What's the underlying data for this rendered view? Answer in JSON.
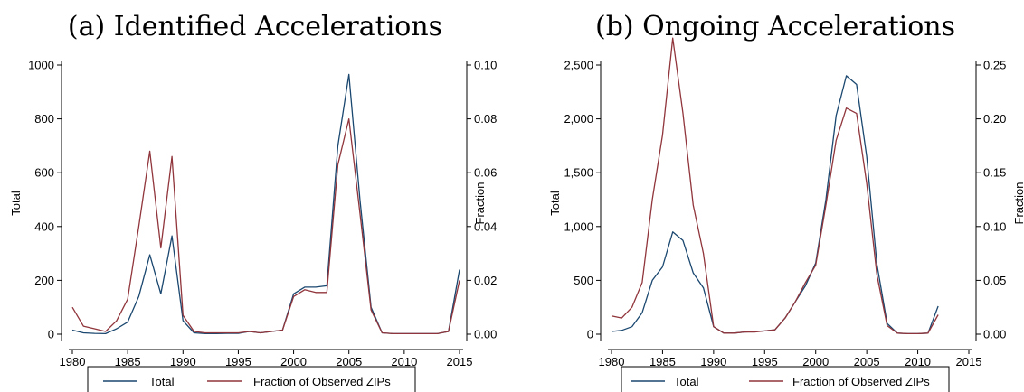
{
  "colors": {
    "total": "#1a476f",
    "fraction": "#90353b",
    "axis": "#000000"
  },
  "chart_data": [
    {
      "type": "line",
      "title": "(a) Identified Accelerations",
      "ylabel": "Total",
      "y2label": "Fraction",
      "xlim": [
        1980,
        2015
      ],
      "xticks": [
        1980,
        1985,
        1990,
        1995,
        2000,
        2005,
        2010,
        2015
      ],
      "xtick_labels": [
        "1980",
        "1985",
        "1990",
        "1995",
        "2000",
        "2005",
        "2010",
        "2015"
      ],
      "ylim": [
        0,
        1000
      ],
      "yticks": [
        0,
        200,
        400,
        600,
        800,
        1000
      ],
      "ytick_labels": [
        "0",
        "200",
        "400",
        "600",
        "800",
        "1000"
      ],
      "y2lim": [
        0,
        0.1
      ],
      "y2ticks": [
        0,
        0.02,
        0.04,
        0.06,
        0.08,
        0.1
      ],
      "y2tick_labels": [
        "0.00",
        "0.02",
        "0.04",
        "0.06",
        "0.08",
        "0.10"
      ],
      "x": [
        1980,
        1981,
        1982,
        1983,
        1984,
        1985,
        1986,
        1987,
        1988,
        1989,
        1990,
        1991,
        1992,
        1993,
        1994,
        1995,
        1996,
        1997,
        1998,
        1999,
        2000,
        2001,
        2002,
        2003,
        2004,
        2005,
        2006,
        2007,
        2008,
        2009,
        2010,
        2011,
        2012,
        2013,
        2014,
        2015
      ],
      "legend": {
        "placement": "bottom",
        "labels": [
          "Total",
          "Fraction of Observed ZIPs"
        ]
      },
      "series": [
        {
          "name": "Total",
          "axis": "left",
          "values": [
            15,
            5,
            3,
            2,
            20,
            45,
            140,
            295,
            150,
            365,
            50,
            5,
            2,
            2,
            3,
            3,
            10,
            5,
            10,
            15,
            150,
            175,
            175,
            180,
            700,
            965,
            500,
            100,
            5,
            2,
            2,
            2,
            2,
            2,
            10,
            240
          ]
        },
        {
          "name": "Fraction of Observed ZIPs",
          "axis": "right",
          "values": [
            0.01,
            0.003,
            0.002,
            0.001,
            0.005,
            0.013,
            0.04,
            0.068,
            0.032,
            0.066,
            0.007,
            0.001,
            0.0005,
            0.0005,
            0.0005,
            0.0005,
            0.001,
            0.0005,
            0.001,
            0.0015,
            0.014,
            0.0165,
            0.0155,
            0.0155,
            0.063,
            0.08,
            0.045,
            0.009,
            0.0005,
            0.0002,
            0.0002,
            0.0002,
            0.0002,
            0.0002,
            0.001,
            0.02
          ]
        }
      ]
    },
    {
      "type": "line",
      "title": "(b) Ongoing Accelerations",
      "ylabel": "Total",
      "y2label": "Fraction",
      "xlim": [
        1980,
        2015
      ],
      "xticks": [
        1980,
        1985,
        1990,
        1995,
        2000,
        2005,
        2010,
        2015
      ],
      "xtick_labels": [
        "1980",
        "1985",
        "1990",
        "1995",
        "2000",
        "2005",
        "2010",
        "2015"
      ],
      "ylim": [
        0,
        2500
      ],
      "yticks": [
        0,
        500,
        1000,
        1500,
        2000,
        2500
      ],
      "ytick_labels": [
        "0",
        "500",
        "1,000",
        "1,500",
        "2,000",
        "2,500"
      ],
      "y2lim": [
        0,
        0.25
      ],
      "y2ticks": [
        0,
        0.05,
        0.1,
        0.15,
        0.2,
        0.25
      ],
      "y2tick_labels": [
        "0.00",
        "0.05",
        "0.10",
        "0.15",
        "0.20",
        "0.25"
      ],
      "x": [
        1980,
        1981,
        1982,
        1983,
        1984,
        1985,
        1986,
        1987,
        1988,
        1989,
        1990,
        1991,
        1992,
        1993,
        1994,
        1995,
        1996,
        1997,
        1998,
        1999,
        2000,
        2001,
        2002,
        2003,
        2004,
        2005,
        2006,
        2007,
        2008,
        2009,
        2010,
        2011,
        2012
      ],
      "legend": {
        "placement": "bottom",
        "labels": [
          "Total",
          "Fraction of Observed ZIPs"
        ]
      },
      "series": [
        {
          "name": "Total",
          "axis": "left",
          "values": [
            25,
            35,
            70,
            200,
            500,
            625,
            950,
            870,
            570,
            430,
            70,
            10,
            10,
            20,
            25,
            30,
            40,
            150,
            300,
            450,
            660,
            1250,
            2030,
            2400,
            2320,
            1650,
            650,
            100,
            10,
            5,
            5,
            10,
            260
          ]
        },
        {
          "name": "Fraction of Observed ZIPs",
          "axis": "right",
          "values": [
            0.017,
            0.015,
            0.025,
            0.048,
            0.125,
            0.185,
            0.275,
            0.205,
            0.12,
            0.075,
            0.007,
            0.001,
            0.001,
            0.002,
            0.002,
            0.003,
            0.004,
            0.015,
            0.03,
            0.048,
            0.064,
            0.12,
            0.18,
            0.21,
            0.205,
            0.14,
            0.055,
            0.008,
            0.001,
            0.0005,
            0.0005,
            0.001,
            0.018
          ]
        }
      ]
    }
  ]
}
